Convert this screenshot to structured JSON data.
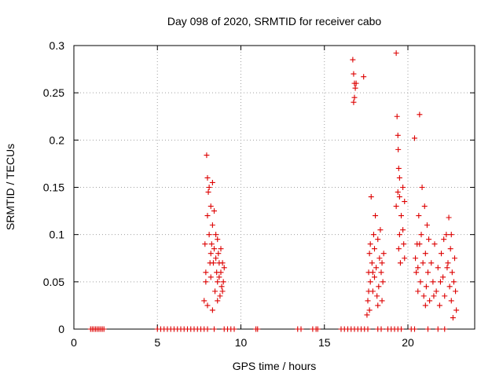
{
  "chart_data": {
    "type": "scatter",
    "title": "Day 098 of 2020, SRMTID for receiver cabo",
    "xlabel": "GPS time / hours",
    "ylabel": "SRMTID / TECUs",
    "xlim": [
      0,
      24
    ],
    "ylim": [
      0,
      0.3
    ],
    "x_ticks": [
      0,
      5,
      10,
      15,
      20
    ],
    "y_ticks": [
      0,
      0.05,
      0.1,
      0.15,
      0.2,
      0.25,
      0.3
    ],
    "x_tick_labels": [
      "0",
      "5",
      "10",
      "15",
      "20"
    ],
    "y_tick_labels": [
      "0",
      "0.05",
      "0.1",
      "0.15",
      "0.2",
      "0.25",
      "0.3"
    ],
    "grid": true,
    "marker": "plus",
    "color": "#dd0000",
    "series": [
      {
        "name": "SRMTID",
        "points": [
          [
            1.0,
            0.0
          ],
          [
            1.1,
            0.0
          ],
          [
            1.2,
            0.0
          ],
          [
            1.3,
            0.0
          ],
          [
            1.4,
            0.0
          ],
          [
            1.5,
            0.0
          ],
          [
            1.6,
            0.0
          ],
          [
            1.7,
            0.0
          ],
          [
            1.8,
            0.0
          ],
          [
            5.0,
            0.0
          ],
          [
            5.2,
            0.0
          ],
          [
            5.4,
            0.0
          ],
          [
            5.6,
            0.0
          ],
          [
            5.8,
            0.0
          ],
          [
            6.0,
            0.0
          ],
          [
            6.2,
            0.0
          ],
          [
            6.4,
            0.0
          ],
          [
            6.6,
            0.0
          ],
          [
            6.8,
            0.0
          ],
          [
            7.0,
            0.0
          ],
          [
            7.2,
            0.0
          ],
          [
            7.4,
            0.0
          ],
          [
            7.6,
            0.0
          ],
          [
            7.8,
            0.0
          ],
          [
            8.0,
            0.0
          ],
          [
            8.4,
            0.0
          ],
          [
            9.0,
            0.0
          ],
          [
            9.2,
            0.0
          ],
          [
            9.4,
            0.0
          ],
          [
            9.6,
            0.0
          ],
          [
            10.9,
            0.0
          ],
          [
            11.0,
            0.0
          ],
          [
            13.4,
            0.0
          ],
          [
            13.6,
            0.0
          ],
          [
            14.3,
            0.0
          ],
          [
            14.5,
            0.0
          ],
          [
            14.6,
            0.0
          ],
          [
            16.0,
            0.0
          ],
          [
            16.2,
            0.0
          ],
          [
            16.4,
            0.0
          ],
          [
            16.6,
            0.0
          ],
          [
            16.8,
            0.0
          ],
          [
            17.0,
            0.0
          ],
          [
            17.2,
            0.0
          ],
          [
            17.4,
            0.0
          ],
          [
            17.6,
            0.0
          ],
          [
            18.2,
            0.0
          ],
          [
            18.4,
            0.0
          ],
          [
            18.8,
            0.0
          ],
          [
            19.0,
            0.0
          ],
          [
            19.2,
            0.0
          ],
          [
            19.4,
            0.0
          ],
          [
            19.6,
            0.0
          ],
          [
            20.2,
            0.0
          ],
          [
            20.4,
            0.0
          ],
          [
            21.2,
            0.0
          ],
          [
            21.8,
            0.0
          ],
          [
            22.2,
            0.0
          ],
          [
            7.8,
            0.03
          ],
          [
            7.85,
            0.09
          ],
          [
            7.9,
            0.06
          ],
          [
            7.95,
            0.184
          ],
          [
            8.0,
            0.16
          ],
          [
            8.0,
            0.12
          ],
          [
            8.05,
            0.145
          ],
          [
            8.1,
            0.15
          ],
          [
            8.1,
            0.1
          ],
          [
            8.15,
            0.07
          ],
          [
            8.2,
            0.13
          ],
          [
            8.2,
            0.055
          ],
          [
            8.25,
            0.09
          ],
          [
            8.3,
            0.155
          ],
          [
            8.3,
            0.11
          ],
          [
            8.35,
            0.07
          ],
          [
            8.4,
            0.125
          ],
          [
            8.4,
            0.085
          ],
          [
            8.45,
            0.04
          ],
          [
            8.5,
            0.1
          ],
          [
            8.5,
            0.075
          ],
          [
            8.55,
            0.06
          ],
          [
            8.6,
            0.095
          ],
          [
            8.6,
            0.05
          ],
          [
            8.65,
            0.08
          ],
          [
            8.7,
            0.07
          ],
          [
            8.75,
            0.035
          ],
          [
            8.8,
            0.085
          ],
          [
            8.8,
            0.06
          ],
          [
            8.85,
            0.045
          ],
          [
            8.9,
            0.07
          ],
          [
            8.95,
            0.05
          ],
          [
            9.0,
            0.065
          ],
          [
            8.0,
            0.025
          ],
          [
            8.3,
            0.02
          ],
          [
            8.6,
            0.03
          ],
          [
            8.7,
            0.055
          ],
          [
            8.9,
            0.04
          ],
          [
            8.2,
            0.08
          ],
          [
            7.9,
            0.05
          ],
          [
            16.7,
            0.285
          ],
          [
            16.75,
            0.27
          ],
          [
            16.8,
            0.26
          ],
          [
            16.8,
            0.245
          ],
          [
            16.85,
            0.255
          ],
          [
            16.9,
            0.26
          ],
          [
            16.75,
            0.24
          ],
          [
            17.35,
            0.267
          ],
          [
            17.6,
            0.03
          ],
          [
            17.65,
            0.06
          ],
          [
            17.7,
            0.02
          ],
          [
            17.7,
            0.08
          ],
          [
            17.75,
            0.05
          ],
          [
            17.8,
            0.14
          ],
          [
            17.85,
            0.07
          ],
          [
            17.9,
            0.04
          ],
          [
            17.95,
            0.1
          ],
          [
            18.0,
            0.055
          ],
          [
            18.0,
            0.085
          ],
          [
            18.05,
            0.12
          ],
          [
            18.1,
            0.065
          ],
          [
            18.15,
            0.035
          ],
          [
            18.2,
            0.095
          ],
          [
            18.25,
            0.045
          ],
          [
            18.3,
            0.075
          ],
          [
            18.35,
            0.105
          ],
          [
            18.4,
            0.06
          ],
          [
            18.45,
            0.03
          ],
          [
            18.5,
            0.05
          ],
          [
            18.55,
            0.08
          ],
          [
            17.65,
            0.04
          ],
          [
            17.55,
            0.015
          ],
          [
            17.75,
            0.09
          ],
          [
            17.9,
            0.06
          ],
          [
            18.2,
            0.025
          ],
          [
            18.45,
            0.07
          ],
          [
            19.3,
            0.292
          ],
          [
            19.35,
            0.225
          ],
          [
            19.4,
            0.205
          ],
          [
            19.42,
            0.19
          ],
          [
            19.45,
            0.17
          ],
          [
            19.5,
            0.16
          ],
          [
            19.4,
            0.145
          ],
          [
            19.5,
            0.14
          ],
          [
            19.3,
            0.13
          ],
          [
            19.5,
            0.1
          ],
          [
            19.45,
            0.085
          ],
          [
            19.6,
            0.12
          ],
          [
            19.7,
            0.15
          ],
          [
            19.75,
            0.09
          ],
          [
            19.8,
            0.075
          ],
          [
            19.8,
            0.135
          ],
          [
            19.7,
            0.105
          ],
          [
            19.55,
            0.07
          ],
          [
            20.4,
            0.202
          ],
          [
            20.5,
            0.06
          ],
          [
            20.55,
            0.09
          ],
          [
            20.6,
            0.04
          ],
          [
            20.65,
            0.12
          ],
          [
            20.7,
            0.227
          ],
          [
            20.75,
            0.05
          ],
          [
            20.8,
            0.1
          ],
          [
            20.85,
            0.15
          ],
          [
            20.9,
            0.07
          ],
          [
            20.95,
            0.035
          ],
          [
            21.0,
            0.13
          ],
          [
            21.05,
            0.08
          ],
          [
            21.1,
            0.045
          ],
          [
            21.15,
            0.11
          ],
          [
            21.2,
            0.06
          ],
          [
            21.3,
            0.03
          ],
          [
            21.4,
            0.07
          ],
          [
            21.5,
            0.05
          ],
          [
            21.6,
            0.09
          ],
          [
            21.7,
            0.04
          ],
          [
            21.8,
            0.065
          ],
          [
            21.9,
            0.025
          ],
          [
            22.0,
            0.08
          ],
          [
            22.1,
            0.055
          ],
          [
            22.2,
            0.035
          ],
          [
            22.3,
            0.1
          ],
          [
            22.4,
            0.07
          ],
          [
            22.45,
            0.118
          ],
          [
            22.5,
            0.045
          ],
          [
            22.55,
            0.085
          ],
          [
            22.6,
            0.03
          ],
          [
            22.65,
            0.06
          ],
          [
            22.7,
            0.012
          ],
          [
            22.75,
            0.05
          ],
          [
            22.8,
            0.075
          ],
          [
            22.85,
            0.04
          ],
          [
            22.9,
            0.02
          ],
          [
            20.45,
            0.075
          ],
          [
            20.7,
            0.09
          ],
          [
            21.25,
            0.095
          ],
          [
            21.55,
            0.035
          ],
          [
            21.95,
            0.05
          ],
          [
            22.35,
            0.065
          ],
          [
            22.15,
            0.095
          ],
          [
            21.05,
            0.025
          ],
          [
            20.6,
            0.065
          ],
          [
            22.6,
            0.1
          ]
        ]
      }
    ]
  }
}
